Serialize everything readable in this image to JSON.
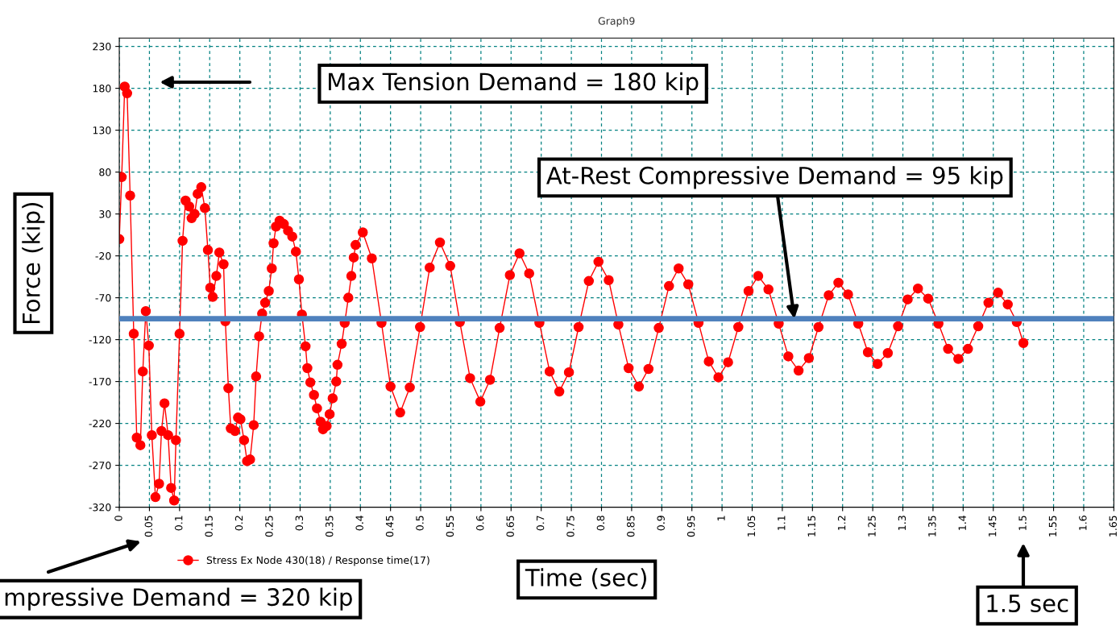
{
  "chart_data": {
    "type": "line",
    "title": "Graph9",
    "xlabel": "Time (sec)",
    "ylabel": "Force (kip)",
    "series": [
      {
        "name": "Stress Ex Node 430(18) / Response time(17)",
        "color": "#ff0000",
        "x": [
          0,
          0.004,
          0.009,
          0.013,
          0.018,
          0.024,
          0.029,
          0.035,
          0.039,
          0.044,
          0.049,
          0.054,
          0.06,
          0.066,
          0.07,
          0.075,
          0.081,
          0.086,
          0.091,
          0.094,
          0.1,
          0.105,
          0.11,
          0.116,
          0.12,
          0.125,
          0.13,
          0.136,
          0.142,
          0.147,
          0.151,
          0.155,
          0.161,
          0.166,
          0.173,
          0.176,
          0.181,
          0.185,
          0.192,
          0.197,
          0.201,
          0.207,
          0.212,
          0.217,
          0.223,
          0.227,
          0.232,
          0.237,
          0.242,
          0.248,
          0.253,
          0.256,
          0.26,
          0.266,
          0.273,
          0.28,
          0.287,
          0.293,
          0.298,
          0.303,
          0.309,
          0.312,
          0.317,
          0.323,
          0.328,
          0.334,
          0.338,
          0.344,
          0.349,
          0.354,
          0.36,
          0.362,
          0.369,
          0.374,
          0.38,
          0.385,
          0.389,
          0.392,
          0.404,
          0.419,
          0.435,
          0.45,
          0.466,
          0.482,
          0.499,
          0.515,
          0.532,
          0.549,
          0.565,
          0.582,
          0.599,
          0.615,
          0.631,
          0.648,
          0.664,
          0.68,
          0.697,
          0.714,
          0.73,
          0.746,
          0.762,
          0.779,
          0.795,
          0.812,
          0.828,
          0.845,
          0.862,
          0.878,
          0.895,
          0.912,
          0.928,
          0.944,
          0.961,
          0.978,
          0.994,
          1.01,
          1.027,
          1.044,
          1.06,
          1.077,
          1.094,
          1.11,
          1.127,
          1.144,
          1.16,
          1.177,
          1.193,
          1.209,
          1.226,
          1.242,
          1.258,
          1.275,
          1.292,
          1.308,
          1.325,
          1.342,
          1.359,
          1.375,
          1.392,
          1.408,
          1.425,
          1.442,
          1.458,
          1.474,
          1.489,
          1.5
        ],
        "values": [
          0,
          74,
          182,
          174,
          52,
          -113,
          -237,
          -246,
          -158,
          -86,
          -127,
          -234,
          -308,
          -292,
          -229,
          -196,
          -234,
          -297,
          -312,
          -240,
          -113,
          -2,
          46,
          39,
          25,
          30,
          54,
          62,
          37,
          -13,
          -58,
          -69,
          -44,
          -16,
          -30,
          -98,
          -178,
          -226,
          -229,
          -213,
          -215,
          -240,
          -265,
          -263,
          -222,
          -164,
          -116,
          -89,
          -76,
          -62,
          -35,
          -5,
          15,
          22,
          18,
          10,
          3,
          -15,
          -48,
          -90,
          -128,
          -154,
          -171,
          -186,
          -202,
          -218,
          -227,
          -223,
          -209,
          -190,
          -170,
          -150,
          -125,
          -100,
          -70,
          -44,
          -22,
          -7,
          8,
          -23,
          -100,
          -176,
          -207,
          -177,
          -105,
          -34,
          -4,
          -32,
          -99,
          -166,
          -194,
          -168,
          -106,
          -43,
          -17,
          -41,
          -100,
          -158,
          -182,
          -159,
          -105,
          -50,
          -27,
          -49,
          -102,
          -154,
          -176,
          -155,
          -106,
          -56,
          -35,
          -54,
          -100,
          -146,
          -165,
          -147,
          -105,
          -62,
          -44,
          -60,
          -101,
          -140,
          -157,
          -142,
          -105,
          -67,
          -52,
          -66,
          -101,
          -135,
          -149,
          -136,
          -104,
          -72,
          -59,
          -71,
          -101,
          -131,
          -143,
          -131,
          -104,
          -76,
          -64,
          -78,
          -99,
          -124
        ]
      }
    ],
    "xlim": [
      0,
      1.65
    ],
    "xticks": [
      0,
      0.05,
      0.1,
      0.15,
      0.2,
      0.25,
      0.3,
      0.35,
      0.4,
      0.45,
      0.5,
      0.55,
      0.6,
      0.65,
      0.7,
      0.75,
      0.8,
      0.85,
      0.9,
      0.95,
      1,
      1.05,
      1.1,
      1.15,
      1.2,
      1.25,
      1.3,
      1.35,
      1.4,
      1.45,
      1.5,
      1.55,
      1.6,
      1.65
    ],
    "ylim": [
      -320,
      240
    ],
    "yticks": [
      -320,
      -270,
      -220,
      -170,
      -120,
      -70,
      -20,
      30,
      80,
      130,
      180,
      230
    ],
    "ref_lines": [
      {
        "axis": "y",
        "value": -95,
        "color": "#4f81bd"
      }
    ],
    "annotations": [
      "Max Tension Demand = 180 kip",
      {
        "text": "At-Rest Compressive Demand = 95 kip",
        "x": 1.12,
        "y": -95
      },
      "mpressive Demand = 320 kip",
      "1.5 sec"
    ],
    "grid": true,
    "legend": "bottom left",
    "marker": "circle",
    "line_style": "solid"
  }
}
